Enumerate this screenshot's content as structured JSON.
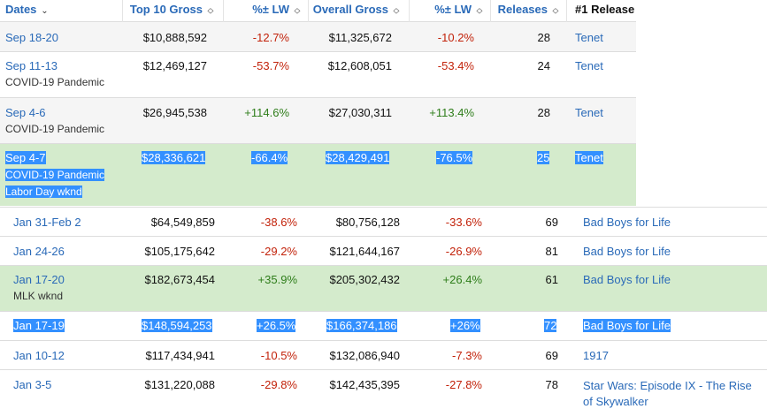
{
  "table_top": {
    "headers": {
      "dates": "Dates",
      "top10": "Top 10 Gross",
      "lw1": "%± LW",
      "overall": "Overall Gross",
      "lw2": "%± LW",
      "releases": "Releases",
      "first": "#1 Release"
    },
    "rows": [
      {
        "date": "Sep 18-20",
        "note": "",
        "note2": "",
        "top10": "$10,888,592",
        "lw1": "-12.7%",
        "overall": "$11,325,672",
        "lw2": "-10.2%",
        "releases": "28",
        "first": "Tenet"
      },
      {
        "date": "Sep 11-13",
        "note": "COVID-19 Pandemic",
        "note2": "",
        "top10": "$12,469,127",
        "lw1": "-53.7%",
        "overall": "$12,608,051",
        "lw2": "-53.4%",
        "releases": "24",
        "first": "Tenet"
      },
      {
        "date": "Sep 4-6",
        "note": "COVID-19 Pandemic",
        "note2": "",
        "top10": "$26,945,538",
        "lw1": "+114.6%",
        "overall": "$27,030,311",
        "lw2": "+113.4%",
        "releases": "28",
        "first": "Tenet"
      },
      {
        "date": "Sep 4-7",
        "note": "COVID-19 Pandemic",
        "note2": "Labor Day wknd",
        "top10": "$28,336,621",
        "lw1": "-66.4%",
        "overall": "$28,429,491",
        "lw2": "-76.5%",
        "releases": "25",
        "first": "Tenet"
      }
    ]
  },
  "table_bottom": {
    "rows": [
      {
        "date": "Jan 31-Feb 2",
        "note": "",
        "top10": "$64,549,859",
        "lw1": "-38.6%",
        "overall": "$80,756,128",
        "lw2": "-33.6%",
        "releases": "69",
        "first": "Bad Boys for Life"
      },
      {
        "date": "Jan 24-26",
        "note": "",
        "top10": "$105,175,642",
        "lw1": "-29.2%",
        "overall": "$121,644,167",
        "lw2": "-26.9%",
        "releases": "81",
        "first": "Bad Boys for Life"
      },
      {
        "date": "Jan 17-20",
        "note": "MLK wknd",
        "top10": "$182,673,454",
        "lw1": "+35.9%",
        "overall": "$205,302,432",
        "lw2": "+26.4%",
        "releases": "61",
        "first": "Bad Boys for Life"
      },
      {
        "date": "Jan 17-19",
        "note": "",
        "top10": "$148,594,253",
        "lw1": "+26.5%",
        "overall": "$166,374,186",
        "lw2": "+26%",
        "releases": "72",
        "first": "Bad Boys for Life"
      },
      {
        "date": "Jan 10-12",
        "note": "",
        "top10": "$117,434,941",
        "lw1": "-10.5%",
        "overall": "$132,086,940",
        "lw2": "-7.3%",
        "releases": "69",
        "first": "1917"
      },
      {
        "date": "Jan 3-5",
        "note": "",
        "top10": "$131,220,088",
        "lw1": "-29.8%",
        "overall": "$142,435,395",
        "lw2": "-27.8%",
        "releases": "78",
        "first": "Star Wars: Episode IX - The Rise of Skywalker"
      }
    ]
  },
  "icons": {
    "dates_sort": "chevron-down-icon",
    "column_sort": "sort-updown-icon"
  },
  "colors": {
    "link": "#2a6ab8",
    "negative": "#c2220a",
    "positive": "#2e7d1a",
    "holiday_row": "#d4ebcc",
    "selection": "#3390ff"
  }
}
